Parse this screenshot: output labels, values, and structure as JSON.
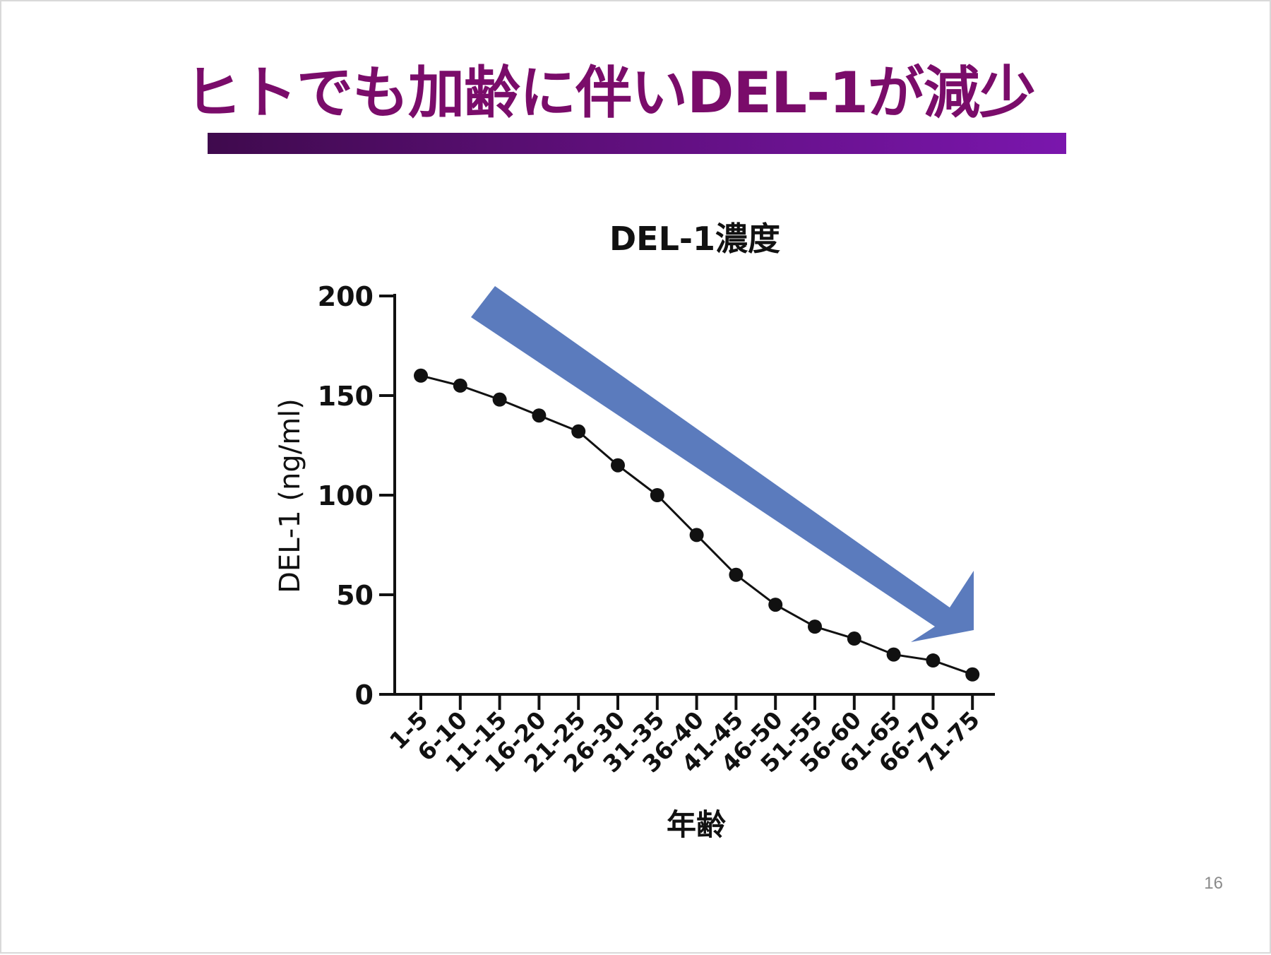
{
  "slide": {
    "title": "ヒトでも加齢に伴いDEL-1が減少",
    "page_number": "16",
    "title_color": "#7a0c6a",
    "arrow_color": "#5b7bbd"
  },
  "chart_data": {
    "type": "line",
    "title": "DEL-1濃度",
    "xlabel": "年齢",
    "ylabel": "DEL-1 (ng/ml)",
    "categories": [
      "1-5",
      "6-10",
      "11-15",
      "16-20",
      "21-25",
      "26-30",
      "31-35",
      "36-40",
      "41-45",
      "46-50",
      "51-55",
      "56-60",
      "61-65",
      "66-70",
      "71-75"
    ],
    "values": [
      160,
      155,
      148,
      140,
      132,
      115,
      100,
      80,
      60,
      45,
      34,
      28,
      20,
      17,
      10
    ],
    "ylim": [
      0,
      200
    ],
    "yticks": [
      0,
      50,
      100,
      150,
      200
    ],
    "ytick_labels": [
      "0",
      "50",
      "100",
      "150",
      "200"
    ],
    "grid": false,
    "legend": "none",
    "annotation": "decreasing trend arrow (blue)"
  }
}
